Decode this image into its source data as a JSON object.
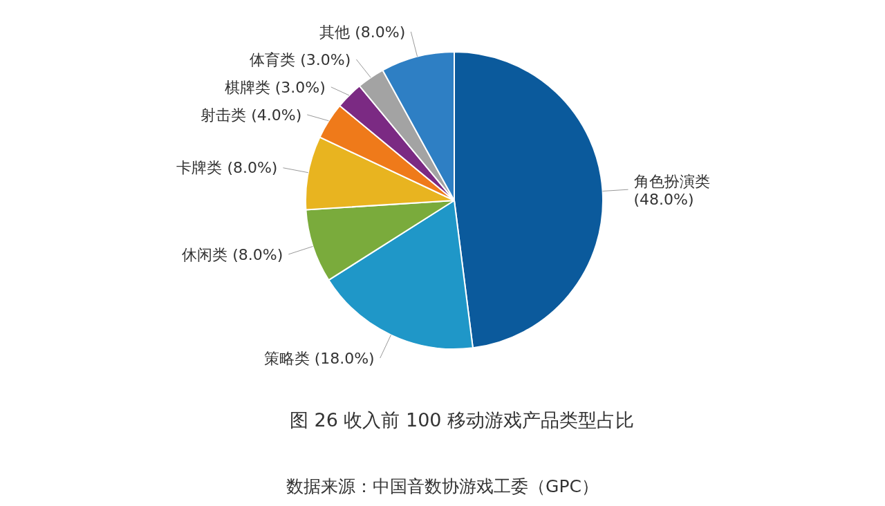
{
  "chart_data": {
    "type": "pie",
    "title": "图 26  收入前 100 移动游戏产品类型占比",
    "categories": [
      "角色扮演类",
      "策略类",
      "休闲类",
      "卡牌类",
      "射击类",
      "棋牌类",
      "体育类",
      "其他"
    ],
    "values": [
      48,
      18,
      8,
      8,
      4,
      3,
      3,
      8
    ],
    "value_labels": [
      "(48.0%)",
      "(18.0%)",
      "(8.0%)",
      "(8.0%)",
      "(4.0%)",
      "(3.0%)",
      "(3.0%)",
      "(8.0%)"
    ],
    "colors": [
      "#0b5a9c",
      "#1f97c8",
      "#7aab3c",
      "#e8b420",
      "#ef7a1a",
      "#7b2a83",
      "#a3a3a3",
      "#2e7fc4"
    ],
    "annotations": [
      "数据来源：中国音数协游戏工委（GPC）"
    ]
  }
}
